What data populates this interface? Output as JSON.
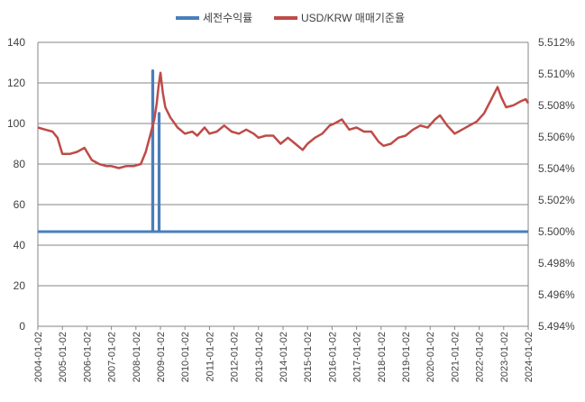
{
  "chart_data": {
    "type": "line",
    "legend_position": "top",
    "grid": true,
    "x_tick_labels": [
      "2004-01-02",
      "2005-01-02",
      "2006-01-02",
      "2007-01-02",
      "2008-01-02",
      "2009-01-02",
      "2010-01-02",
      "2011-01-02",
      "2012-01-02",
      "2013-01-02",
      "2014-01-02",
      "2015-01-02",
      "2016-01-02",
      "2017-01-02",
      "2018-01-02",
      "2019-01-02",
      "2020-01-02",
      "2021-01-02",
      "2022-01-02",
      "2023-01-02",
      "2024-01-02"
    ],
    "x_range": [
      2004.0,
      2024.0
    ],
    "y_left": {
      "range": [
        0,
        140
      ],
      "ticks": [
        "0",
        "20",
        "40",
        "60",
        "80",
        "100",
        "120",
        "140"
      ]
    },
    "y_right": {
      "range": [
        0.05494,
        0.05512
      ],
      "ticks": [
        "5.494%",
        "5.496%",
        "5.498%",
        "5.500%",
        "5.502%",
        "5.504%",
        "5.506%",
        "5.508%",
        "5.510%",
        "5.512%"
      ]
    },
    "series": [
      {
        "name": "세전수익률",
        "axis": "right",
        "color": "#4a7ebb",
        "x": [
          2004.0,
          2008.68,
          2008.68,
          2008.69,
          2008.69,
          2008.94,
          2008.94,
          2008.95,
          2008.95,
          2024.0
        ],
        "y": [
          0.055,
          0.055,
          0.055102,
          0.055102,
          0.055,
          0.055,
          0.055075,
          0.055075,
          0.055,
          0.055
        ]
      },
      {
        "name": "USD/KRW 매매기준율",
        "axis": "left",
        "color": "#be4b48",
        "x": [
          2004.0,
          2004.3,
          2004.6,
          2004.8,
          2005.0,
          2005.3,
          2005.6,
          2005.9,
          2006.2,
          2006.5,
          2006.8,
          2007.0,
          2007.3,
          2007.6,
          2007.9,
          2008.2,
          2008.4,
          2008.6,
          2008.75,
          2008.85,
          2008.92,
          2009.0,
          2009.1,
          2009.2,
          2009.4,
          2009.7,
          2010.0,
          2010.3,
          2010.5,
          2010.8,
          2011.0,
          2011.3,
          2011.6,
          2011.9,
          2012.2,
          2012.5,
          2012.8,
          2013.0,
          2013.3,
          2013.6,
          2013.9,
          2014.2,
          2014.5,
          2014.8,
          2015.0,
          2015.3,
          2015.6,
          2015.9,
          2016.1,
          2016.4,
          2016.7,
          2017.0,
          2017.3,
          2017.6,
          2017.9,
          2018.1,
          2018.4,
          2018.7,
          2019.0,
          2019.3,
          2019.6,
          2019.9,
          2020.2,
          2020.4,
          2020.7,
          2021.0,
          2021.3,
          2021.6,
          2021.9,
          2022.2,
          2022.5,
          2022.75,
          2022.9,
          2023.1,
          2023.4,
          2023.7,
          2023.9,
          2024.0
        ],
        "y": [
          98,
          97,
          96,
          93,
          85,
          85,
          86,
          88,
          82,
          80,
          79,
          79,
          78,
          79,
          79,
          80,
          86,
          95,
          102,
          110,
          118,
          125,
          115,
          108,
          103,
          98,
          95,
          96,
          94,
          98,
          95,
          96,
          99,
          96,
          95,
          97,
          95,
          93,
          94,
          94,
          90,
          93,
          90,
          87,
          90,
          93,
          95,
          99,
          100,
          102,
          97,
          98,
          96,
          96,
          91,
          89,
          90,
          93,
          94,
          97,
          99,
          98,
          102,
          104,
          99,
          95,
          97,
          99,
          101,
          105,
          112,
          118,
          113,
          108,
          109,
          111,
          112,
          110
        ]
      }
    ]
  }
}
